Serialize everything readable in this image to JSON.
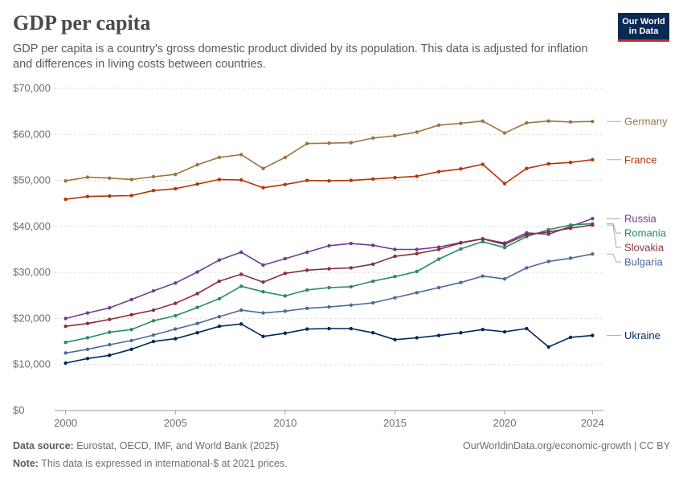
{
  "title": "GDP per capita",
  "subtitle": "GDP per capita is a country's gross domestic product divided by its population. This data is adjusted for inflation and differences in living costs between countries.",
  "logo": {
    "line1": "Our World",
    "line2": "in Data"
  },
  "footer": {
    "source_label": "Data source:",
    "source_text": "Eurostat, OECD, IMF, and World Bank (2025)",
    "note_label": "Note:",
    "note_text": "This data is expressed in international-$ at 2021 prices.",
    "credit": "OurWorldinData.org/economic-growth | CC BY"
  },
  "chart_data": {
    "type": "line",
    "x": [
      2000,
      2001,
      2002,
      2003,
      2004,
      2005,
      2006,
      2007,
      2008,
      2009,
      2010,
      2011,
      2012,
      2013,
      2014,
      2015,
      2016,
      2017,
      2018,
      2019,
      2020,
      2021,
      2022,
      2023,
      2024
    ],
    "xticks": [
      2000,
      2005,
      2010,
      2015,
      2020,
      2024
    ],
    "xtick_labels": [
      "2000",
      "2005",
      "2010",
      "2015",
      "2020",
      "2024"
    ],
    "xlim": [
      1999.5,
      2024.5
    ],
    "ylim": [
      0,
      70000
    ],
    "yticks": [
      0,
      10000,
      20000,
      30000,
      40000,
      50000,
      60000,
      70000
    ],
    "ytick_labels": [
      "$0",
      "$10,000",
      "$20,000",
      "$30,000",
      "$40,000",
      "$50,000",
      "$60,000",
      "$70,000"
    ],
    "grid": "horizontal dashed",
    "legend": "inline labels at right end of lines",
    "series": [
      {
        "name": "Germany",
        "color": "#9a7440",
        "values": [
          49900,
          50700,
          50500,
          50200,
          50800,
          51300,
          53400,
          55000,
          55600,
          52600,
          55000,
          58000,
          58100,
          58200,
          59200,
          59700,
          60500,
          62000,
          62400,
          62900,
          60300,
          62500,
          62900,
          62700,
          62800
        ]
      },
      {
        "name": "France",
        "color": "#b13507",
        "values": [
          45900,
          46500,
          46600,
          46700,
          47800,
          48200,
          49200,
          50200,
          50100,
          48400,
          49100,
          50000,
          49900,
          50000,
          50300,
          50600,
          50900,
          51900,
          52500,
          53500,
          49300,
          52600,
          53600,
          53900,
          54500
        ]
      },
      {
        "name": "Russia",
        "color": "#6d3e91",
        "values": [
          20000,
          21200,
          22300,
          24100,
          26000,
          27700,
          30100,
          32700,
          34400,
          31600,
          33000,
          34400,
          35800,
          36300,
          35900,
          35000,
          35000,
          35500,
          36500,
          37300,
          36400,
          38600,
          38300,
          40000,
          41700
        ]
      },
      {
        "name": "Romania",
        "color": "#2a8a6b",
        "values": [
          14800,
          15800,
          17000,
          17600,
          19500,
          20600,
          22400,
          24300,
          27000,
          25800,
          24900,
          26200,
          26700,
          26900,
          28100,
          29100,
          30200,
          32900,
          35100,
          36700,
          35400,
          37800,
          39300,
          40300,
          40600
        ]
      },
      {
        "name": "Slovakia",
        "color": "#883039",
        "values": [
          18300,
          18900,
          19800,
          20800,
          21800,
          23300,
          25400,
          28100,
          29600,
          27900,
          29800,
          30500,
          30800,
          31000,
          31800,
          33500,
          34100,
          35000,
          36400,
          37300,
          36100,
          38200,
          38800,
          39600,
          40300
        ]
      },
      {
        "name": "Bulgaria",
        "color": "#4c6a9c",
        "values": [
          12500,
          13300,
          14300,
          15200,
          16400,
          17700,
          18900,
          20400,
          21800,
          21200,
          21600,
          22200,
          22500,
          22900,
          23400,
          24500,
          25600,
          26700,
          27800,
          29200,
          28600,
          31000,
          32400,
          33100,
          34000
        ]
      },
      {
        "name": "Ukraine",
        "color": "#00295b",
        "values": [
          10300,
          11300,
          12000,
          13300,
          15000,
          15600,
          16900,
          18300,
          18800,
          16100,
          16800,
          17700,
          17800,
          17800,
          16900,
          15400,
          15800,
          16300,
          16900,
          17600,
          17100,
          17800,
          13800,
          15900,
          16300
        ]
      }
    ]
  }
}
